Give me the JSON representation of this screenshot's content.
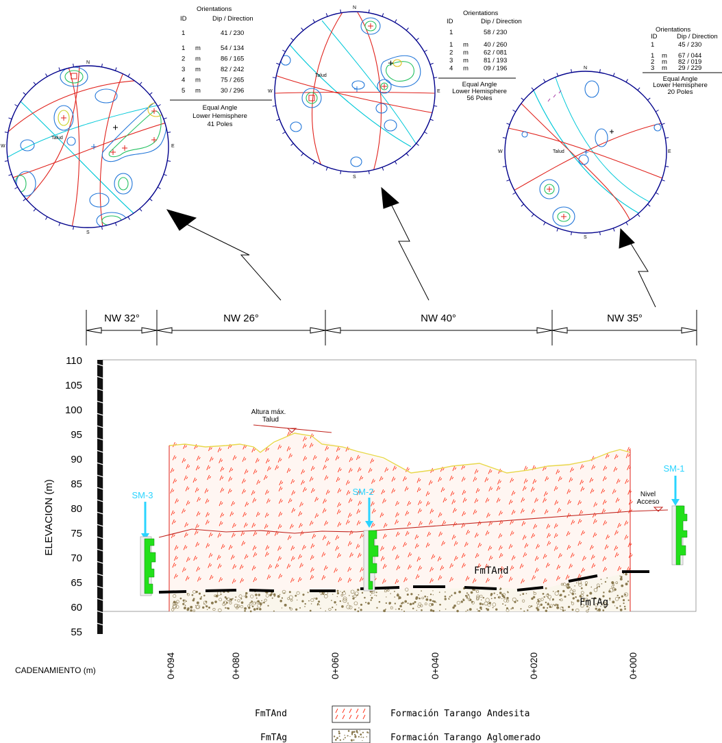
{
  "stereonets": [
    {
      "header": "Orientations",
      "col_id": "ID",
      "col_dip": "Dip / Direction",
      "slope": {
        "id": "1",
        "dip_dir": "41 / 230"
      },
      "sets": [
        {
          "id": "1",
          "m": "m",
          "dip_dir": "54 / 134"
        },
        {
          "id": "2",
          "m": "m",
          "dip_dir": "86 / 165"
        },
        {
          "id": "3",
          "m": "m",
          "dip_dir": "82 / 242"
        },
        {
          "id": "4",
          "m": "m",
          "dip_dir": "75 / 265"
        },
        {
          "id": "5",
          "m": "m",
          "dip_dir": "30 / 296"
        }
      ],
      "projection": "Equal Angle",
      "hemisphere": "Lower Hemisphere",
      "poles": "41 Poles",
      "slope_label": "Talud",
      "compass": {
        "n": "N",
        "s": "S",
        "e": "E",
        "w": "W"
      }
    },
    {
      "header": "Orientations",
      "col_id": "ID",
      "col_dip": "Dip / Direction",
      "slope": {
        "id": "1",
        "dip_dir": "58 / 230"
      },
      "sets": [
        {
          "id": "1",
          "m": "m",
          "dip_dir": "40 / 260"
        },
        {
          "id": "2",
          "m": "m",
          "dip_dir": "62 / 081"
        },
        {
          "id": "3",
          "m": "m",
          "dip_dir": "81 / 193"
        },
        {
          "id": "4",
          "m": "m",
          "dip_dir": "09 / 196"
        }
      ],
      "projection": "Equal Angle",
      "hemisphere": "Lower Hemisphere",
      "poles": "56 Poles",
      "slope_label": "Talud",
      "compass": {
        "n": "N",
        "s": "S",
        "e": "E",
        "w": "W"
      }
    },
    {
      "header": "Orientations",
      "col_id": "ID",
      "col_dip": "Dip / Direction",
      "slope": {
        "id": "1",
        "dip_dir": "45 / 230"
      },
      "sets": [
        {
          "id": "1",
          "m": "m",
          "dip_dir": "67 / 044"
        },
        {
          "id": "2",
          "m": "m",
          "dip_dir": "82 / 019"
        },
        {
          "id": "3",
          "m": "m",
          "dip_dir": "29 / 229"
        }
      ],
      "projection": "Equal Angle",
      "hemisphere": "Lower Hemisphere",
      "poles": "20 Poles",
      "slope_label": "Talud",
      "compass": {
        "n": "N",
        "s": "S",
        "e": "E",
        "w": "W"
      }
    }
  ],
  "directions": [
    "NW 32°",
    "NW 26°",
    "NW 40°",
    "NW 35°"
  ],
  "section": {
    "y_axis_title": "ELEVACION (m)",
    "y_ticks": [
      "110",
      "105",
      "100",
      "95",
      "90",
      "85",
      "80",
      "75",
      "70",
      "65",
      "60",
      "55"
    ],
    "x_axis_title": "CADENAMIENTO (m)",
    "x_ticks": [
      "0+094",
      "0+080",
      "0+060",
      "0+040",
      "0+020",
      "0+000"
    ],
    "label_altura_1": "Altura máx.",
    "label_altura_2": "Talud",
    "label_nivel_1": "Nivel",
    "label_nivel_2": "Acceso",
    "formation_upper": "FmTAnd",
    "formation_lower": "FmTAg",
    "boreholes": [
      "SM-3",
      "SM-2",
      "SM-1"
    ]
  },
  "legend": [
    {
      "code": "FmTAnd",
      "name": "Formación Tarango Andesita"
    },
    {
      "code": "FmTAg",
      "name": "Formación Tarango Aglomerado"
    }
  ],
  "colors": {
    "stereonet_rim": "#00008b",
    "contour": "#1e74d8",
    "great_circle": "#e0201a",
    "slope_circle": "#00c8d8",
    "andesite": "#ff2a10",
    "agglomerate": "#8a7a50",
    "borehole": "#2ad4ff",
    "log_fill": "#22e01a",
    "ground": "#e8d84a"
  }
}
